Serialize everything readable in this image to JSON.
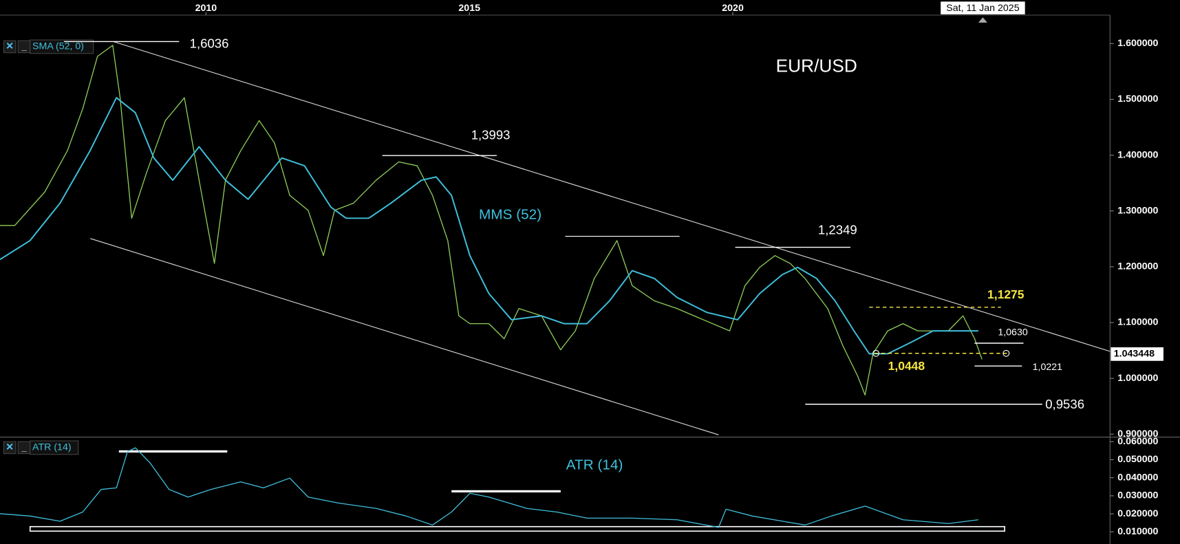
{
  "chart_data": [
    {
      "type": "line",
      "title": "EUR/USD",
      "sma_label": "MMS (52)",
      "date_label": "Sat, 11 Jan 2025",
      "last_price": {
        "value": 1.043448,
        "label": "1.043448"
      },
      "xlim": [
        2006.09,
        2027.16
      ],
      "xticks": [
        2010,
        2015,
        2020
      ],
      "ylim": [
        0.896,
        1.651
      ],
      "yticks": [
        {
          "value": 1.6,
          "label": "1.600000"
        },
        {
          "value": 1.5,
          "label": "1.500000"
        },
        {
          "value": 1.4,
          "label": "1.400000"
        },
        {
          "value": 1.3,
          "label": "1.300000"
        },
        {
          "value": 1.2,
          "label": "1.200000"
        },
        {
          "value": 1.1,
          "label": "1.100000"
        },
        {
          "value": 1.0,
          "label": "1.000000"
        },
        {
          "value": 0.9,
          "label": "0.900000"
        }
      ],
      "grid": false,
      "series": [
        {
          "color": "#8fcf5a",
          "x": [
            2006.09,
            2006.37,
            2006.94,
            2007.37,
            2007.66,
            2007.94,
            2008.23,
            2008.37,
            2008.59,
            2008.87,
            2009.23,
            2009.59,
            2009.87,
            2010.16,
            2010.37,
            2010.66,
            2011.01,
            2011.3,
            2011.59,
            2011.94,
            2012.23,
            2012.44,
            2012.8,
            2013.23,
            2013.66,
            2014.01,
            2014.3,
            2014.59,
            2014.8,
            2015.01,
            2015.37,
            2015.66,
            2015.94,
            2016.37,
            2016.73,
            2017.01,
            2017.37,
            2017.8,
            2018.09,
            2018.51,
            2018.94,
            2019.44,
            2019.94,
            2020.23,
            2020.51,
            2020.8,
            2021.09,
            2021.37,
            2021.8,
            2022.09,
            2022.37,
            2022.51,
            2022.66,
            2022.94,
            2023.23,
            2023.51,
            2023.8,
            2024.09,
            2024.37,
            2024.59,
            2024.73
          ],
          "values": [
            1.274,
            1.274,
            1.334,
            1.408,
            1.483,
            1.577,
            1.597,
            1.503,
            1.287,
            1.368,
            1.462,
            1.503,
            1.355,
            1.206,
            1.355,
            1.408,
            1.462,
            1.422,
            1.328,
            1.301,
            1.22,
            1.301,
            1.314,
            1.355,
            1.388,
            1.381,
            1.328,
            1.247,
            1.112,
            1.098,
            1.098,
            1.071,
            1.125,
            1.112,
            1.051,
            1.085,
            1.179,
            1.247,
            1.166,
            1.139,
            1.125,
            1.105,
            1.085,
            1.166,
            1.199,
            1.22,
            1.206,
            1.179,
            1.125,
            1.058,
            1.004,
            0.97,
            1.044,
            1.085,
            1.098,
            1.085,
            1.085,
            1.085,
            1.112,
            1.071,
            1.034
          ]
        },
        {
          "name": "SMA (52, 0)",
          "color": "#3fc0dc",
          "x": [
            2006.09,
            2006.66,
            2007.23,
            2007.8,
            2008.3,
            2008.66,
            2009.01,
            2009.37,
            2009.87,
            2010.37,
            2010.8,
            2011.44,
            2011.87,
            2012.37,
            2012.66,
            2013.09,
            2013.51,
            2014.09,
            2014.37,
            2014.66,
            2015.01,
            2015.37,
            2015.8,
            2016.37,
            2016.8,
            2017.23,
            2017.66,
            2018.09,
            2018.51,
            2018.94,
            2019.51,
            2020.09,
            2020.51,
            2020.94,
            2021.23,
            2021.59,
            2021.94,
            2022.3,
            2022.59,
            2022.94,
            2023.37,
            2023.8,
            2024.23,
            2024.66
          ],
          "values": [
            1.213,
            1.247,
            1.314,
            1.408,
            1.503,
            1.476,
            1.395,
            1.355,
            1.415,
            1.355,
            1.321,
            1.395,
            1.381,
            1.307,
            1.287,
            1.287,
            1.314,
            1.355,
            1.361,
            1.328,
            1.22,
            1.152,
            1.105,
            1.112,
            1.098,
            1.098,
            1.139,
            1.193,
            1.179,
            1.145,
            1.118,
            1.105,
            1.152,
            1.186,
            1.199,
            1.179,
            1.139,
            1.085,
            1.044,
            1.044,
            1.064,
            1.085,
            1.085,
            1.085
          ]
        }
      ],
      "annotations": [
        {
          "label": "1,6036",
          "value": 1.6036,
          "color": "#ffffff"
        },
        {
          "label": "1,3993",
          "value": 1.3993,
          "color": "#ffffff"
        },
        {
          "label": "1,2349",
          "value": 1.2349,
          "color": "#ffffff"
        },
        {
          "label": "1,1275",
          "value": 1.1275,
          "color": "#f5e642",
          "dashed": true
        },
        {
          "label": "1,0630",
          "value": 1.063,
          "color": "#ffffff"
        },
        {
          "label": "1,0448",
          "value": 1.0448,
          "color": "#f5e642",
          "dashed": true
        },
        {
          "label": "1,0221",
          "value": 1.0221,
          "color": "#ffffff"
        },
        {
          "label": "0,9536",
          "value": 0.9536,
          "color": "#ffffff"
        }
      ]
    },
    {
      "type": "line",
      "panel_label": "ATR (14)",
      "xlim": [
        2006.09,
        2027.16
      ],
      "ylim": [
        0.0054,
        0.0617
      ],
      "yticks": [
        {
          "value": 0.06,
          "label": "0.060000"
        },
        {
          "value": 0.05,
          "label": "0.050000"
        },
        {
          "value": 0.04,
          "label": "0.040000"
        },
        {
          "value": 0.03,
          "label": "0.030000"
        },
        {
          "value": 0.02,
          "label": "0.020000"
        },
        {
          "value": 0.01,
          "label": "0.010000"
        }
      ],
      "grid": false,
      "series": [
        {
          "name": "ATR (14)",
          "color": "#3fc0dc",
          "x": [
            2006.09,
            2006.66,
            2007.23,
            2007.66,
            2008.01,
            2008.3,
            2008.51,
            2008.66,
            2008.94,
            2009.3,
            2009.66,
            2010.09,
            2010.66,
            2011.09,
            2011.59,
            2011.94,
            2012.51,
            2013.23,
            2013.8,
            2014.3,
            2014.66,
            2015.01,
            2015.37,
            2016.09,
            2016.66,
            2017.23,
            2018.09,
            2018.94,
            2019.73,
            2019.87,
            2020.37,
            2021.37,
            2021.87,
            2022.51,
            2023.23,
            2024.09,
            2024.66
          ],
          "values": [
            0.0201,
            0.0188,
            0.0159,
            0.021,
            0.0335,
            0.0344,
            0.0545,
            0.0566,
            0.0482,
            0.0335,
            0.0293,
            0.0335,
            0.0377,
            0.0344,
            0.0398,
            0.0293,
            0.026,
            0.023,
            0.0188,
            0.0138,
            0.021,
            0.0314,
            0.0293,
            0.023,
            0.021,
            0.0176,
            0.0176,
            0.0167,
            0.0125,
            0.0226,
            0.0188,
            0.0138,
            0.0188,
            0.0243,
            0.0167,
            0.0146,
            0.0167
          ]
        }
      ]
    }
  ]
}
